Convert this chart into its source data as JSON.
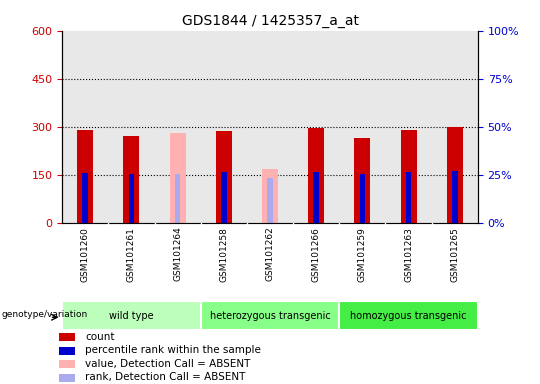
{
  "title": "GDS1844 / 1425357_a_at",
  "samples": [
    "GSM101260",
    "GSM101261",
    "GSM101264",
    "GSM101258",
    "GSM101262",
    "GSM101266",
    "GSM101259",
    "GSM101263",
    "GSM101265"
  ],
  "count_values": [
    290,
    270,
    null,
    287,
    null,
    295,
    265,
    290,
    300
  ],
  "rank_values": [
    155,
    152,
    null,
    158,
    null,
    158,
    152,
    158,
    162
  ],
  "absent_count": [
    null,
    null,
    280,
    null,
    168,
    null,
    null,
    null,
    null
  ],
  "absent_rank": [
    null,
    null,
    153,
    null,
    140,
    null,
    null,
    null,
    null
  ],
  "groups": [
    {
      "label": "wild type",
      "start": 0,
      "end": 3,
      "color": "#bbffbb"
    },
    {
      "label": "heterozygous transgenic",
      "start": 3,
      "end": 6,
      "color": "#88ff88"
    },
    {
      "label": "homozygous transgenic",
      "start": 6,
      "end": 9,
      "color": "#44ee44"
    }
  ],
  "ylim_left": [
    0,
    600
  ],
  "ylim_right": [
    0,
    100
  ],
  "yticks_left": [
    0,
    150,
    300,
    450,
    600
  ],
  "yticks_right": [
    0,
    25,
    50,
    75,
    100
  ],
  "bar_width": 0.35,
  "red_color": "#cc0000",
  "pink_color": "#ffb0b0",
  "blue_color": "#0000cc",
  "lightblue_color": "#aaaaee",
  "rank_bar_width": 0.12,
  "background_color": "#ffffff",
  "grid_color": "#000000",
  "plot_bg": "#e8e8e8",
  "legend_items": [
    {
      "color": "#cc0000",
      "label": "count"
    },
    {
      "color": "#0000cc",
      "label": "percentile rank within the sample"
    },
    {
      "color": "#ffb0b0",
      "label": "value, Detection Call = ABSENT"
    },
    {
      "color": "#aaaaee",
      "label": "rank, Detection Call = ABSENT"
    }
  ]
}
